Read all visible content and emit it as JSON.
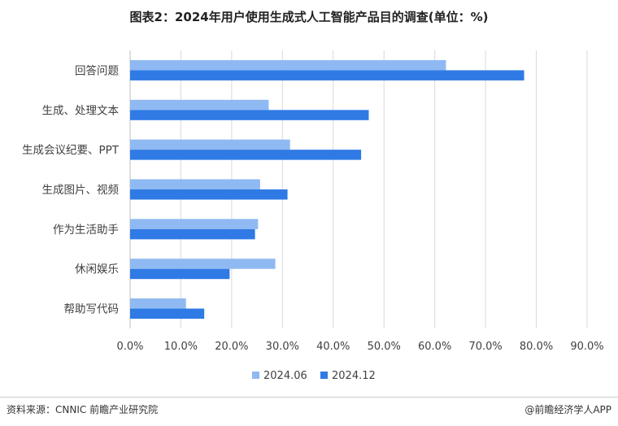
{
  "title": "图表2：2024年用户使用生成式人工智能产品目的调查(单位：%)",
  "source": "资料来源：CNNIC 前瞻产业研究院",
  "credit": "@前瞻经济学人APP",
  "colors": {
    "series1": "#8fb9f2",
    "series2": "#2f7ae5",
    "grid": "#d9d9d9",
    "axis": "#bfbfbf"
  },
  "chart_data": {
    "type": "bar",
    "orientation": "horizontal",
    "categories": [
      "回答问题",
      "生成、处理文本",
      "生成会议纪要、PPT",
      "生成图片、视频",
      "作为生活助手",
      "休闲娱乐",
      "帮助写代码"
    ],
    "series": [
      {
        "name": "2024.06",
        "values": [
          62.2,
          27.3,
          31.5,
          25.6,
          25.2,
          28.6,
          11.0
        ]
      },
      {
        "name": "2024.12",
        "values": [
          77.6,
          47.0,
          45.5,
          31.0,
          24.6,
          19.6,
          14.6
        ]
      }
    ],
    "xlim": [
      0,
      90
    ],
    "xticks": [
      "0.0%",
      "10.0%",
      "20.0%",
      "30.0%",
      "40.0%",
      "50.0%",
      "60.0%",
      "70.0%",
      "80.0%",
      "90.0%"
    ],
    "grid": true,
    "legend": "bottom"
  }
}
